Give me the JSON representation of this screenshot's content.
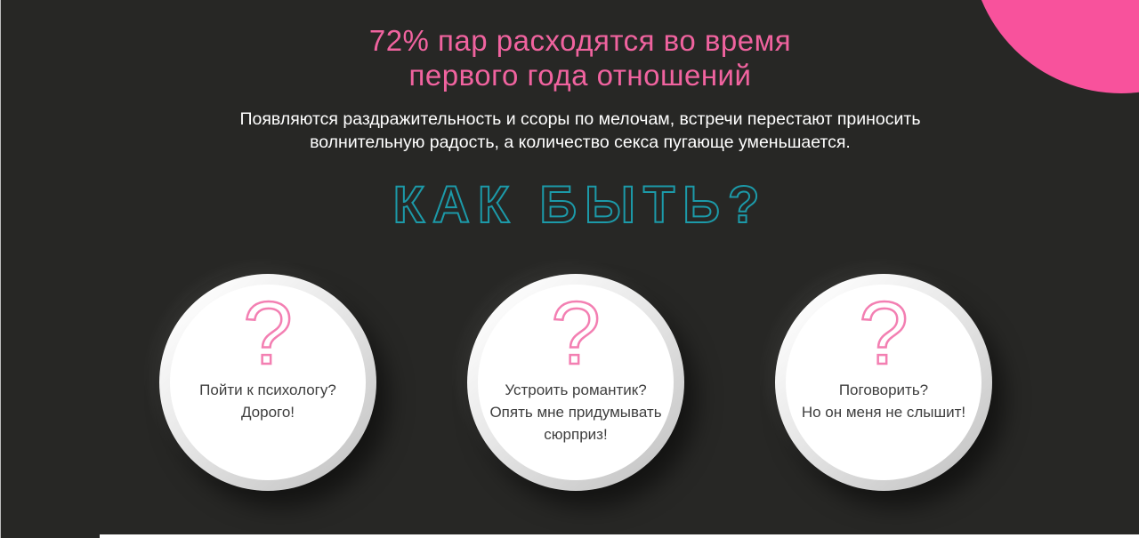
{
  "page": {
    "background_color": "#272725",
    "left_edge_color": "#d8d8d8",
    "bottom_strip_color": "#ffffff"
  },
  "colors": {
    "stat_title_pink": "#f0639f",
    "corner_circle_pink": "#f8529c",
    "question_mark_pink": "#f37fb2",
    "heading_outline_teal": "#1c9aa9",
    "description_white": "#ffffff",
    "card_text_gray": "#3e3e3e"
  },
  "hero": {
    "stat_title": "72% пар расходятся во время\nпервого года отношений",
    "description": "Появляются раздражительность и ссоры по мелочам, встречи перестают приносить\nволнительную радость, а количество секса пугающе уменьшается.",
    "question_heading": "КАК БЫТЬ?"
  },
  "icons": {
    "question_mark": "?"
  },
  "cards": [
    {
      "text": "Пойти к психологу?\nДорого!"
    },
    {
      "text": "Устроить романтик?\nОпять мне придумывать\nсюрприз!"
    },
    {
      "text": "Поговорить?\nНо он меня не слышит!"
    }
  ]
}
